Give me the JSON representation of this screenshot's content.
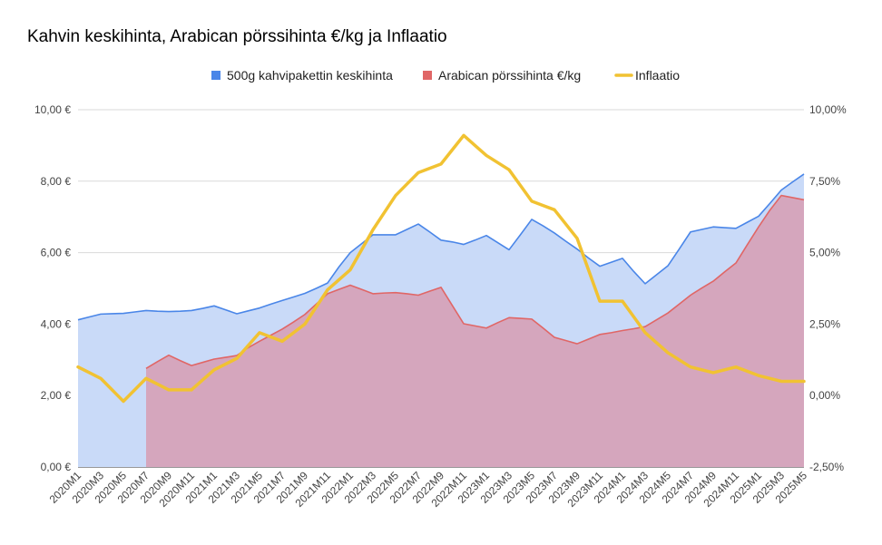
{
  "chart_data": {
    "type": "area",
    "title": "Kahvin keskihinta, Arabican pörssihinta €/kg ja Inflaatio",
    "x": [
      "2020M1",
      "2020M2",
      "2020M3",
      "2020M4",
      "2020M5",
      "2020M6",
      "2020M7",
      "2020M8",
      "2020M9",
      "2020M10",
      "2020M11",
      "2020M12",
      "2021M1",
      "2021M2",
      "2021M3",
      "2021M4",
      "2021M5",
      "2021M6",
      "2021M7",
      "2021M8",
      "2021M9",
      "2021M10",
      "2021M11",
      "2021M12",
      "2022M1",
      "2022M2",
      "2022M3",
      "2022M4",
      "2022M5",
      "2022M6",
      "2022M7",
      "2022M8",
      "2022M9",
      "2022M10",
      "2022M11",
      "2022M12",
      "2023M1",
      "2023M2",
      "2023M3",
      "2023M4",
      "2023M5",
      "2023M6",
      "2023M7",
      "2023M8",
      "2023M9",
      "2023M10",
      "2023M11",
      "2023M12",
      "2024M1",
      "2024M2",
      "2024M3",
      "2024M4",
      "2024M5",
      "2024M6",
      "2024M7",
      "2024M8",
      "2024M9",
      "2024M10",
      "2024M11",
      "2024M12",
      "2025M1",
      "2025M2",
      "2025M3",
      "2025M4",
      "2025M5"
    ],
    "x_tick_labels": [
      "2020M1",
      "2020M3",
      "2020M5",
      "2020M7",
      "2020M9",
      "2020M11",
      "2021M1",
      "2021M3",
      "2021M5",
      "2021M7",
      "2021M9",
      "2021M11",
      "2022M1",
      "2022M3",
      "2022M5",
      "2022M7",
      "2022M9",
      "2022M11",
      "2023M1",
      "2023M3",
      "2023M5",
      "2023M7",
      "2023M9",
      "2023M11",
      "2024M1",
      "2024M3",
      "2024M5",
      "2024M7",
      "2024M9",
      "2024M11",
      "2025M1",
      "2025M3",
      "2025M5"
    ],
    "series": [
      {
        "name": "500g kahvipakettin keskihinta",
        "axis": "left",
        "kind": "area",
        "color": "#4a86e8",
        "fill": "#c9daf8",
        "values": [
          4.12,
          4.2,
          4.28,
          4.29,
          4.3,
          4.34,
          4.38,
          4.36,
          4.35,
          4.36,
          4.38,
          4.44,
          4.51,
          4.4,
          4.29,
          4.37,
          4.45,
          4.56,
          4.66,
          4.76,
          4.86,
          5.0,
          5.15,
          5.6,
          6.0,
          6.25,
          6.5,
          6.5,
          6.5,
          6.65,
          6.8,
          6.58,
          6.35,
          6.3,
          6.23,
          6.35,
          6.48,
          6.28,
          6.08,
          6.5,
          6.93,
          6.75,
          6.55,
          6.32,
          6.1,
          5.85,
          5.62,
          5.73,
          5.84,
          5.47,
          5.13,
          5.38,
          5.63,
          6.1,
          6.58,
          6.65,
          6.72,
          6.7,
          6.68,
          6.85,
          7.02,
          7.38,
          7.75,
          7.98,
          8.2
        ]
      },
      {
        "name": "Arabican pörssihinta €/kg",
        "axis": "left",
        "kind": "area",
        "color": "#e06666",
        "fill": "#d5a6bd",
        "values": [
          null,
          null,
          null,
          null,
          null,
          null,
          2.76,
          2.95,
          3.13,
          2.98,
          2.84,
          2.93,
          3.02,
          3.07,
          3.12,
          3.34,
          3.52,
          3.69,
          3.86,
          4.06,
          4.27,
          4.56,
          4.85,
          4.97,
          5.09,
          4.97,
          4.85,
          4.87,
          4.88,
          4.85,
          4.81,
          4.92,
          5.03,
          4.52,
          4.01,
          3.95,
          3.89,
          4.04,
          4.18,
          4.16,
          4.14,
          3.89,
          3.63,
          3.54,
          3.45,
          3.58,
          3.71,
          3.76,
          3.82,
          3.87,
          3.93,
          4.12,
          4.31,
          4.56,
          4.81,
          5.01,
          5.2,
          5.46,
          5.71,
          6.22,
          6.72,
          7.19,
          7.6,
          7.54,
          7.48
        ]
      },
      {
        "name": "Inflaatio",
        "axis": "right",
        "kind": "line",
        "color": "#f1c232",
        "values": [
          1.0,
          0.8,
          0.6,
          0.2,
          -0.2,
          0.2,
          0.6,
          0.4,
          0.2,
          0.2,
          0.2,
          0.55,
          0.9,
          1.1,
          1.3,
          1.75,
          2.2,
          2.05,
          1.9,
          2.2,
          2.5,
          3.1,
          3.7,
          4.05,
          4.4,
          5.1,
          5.8,
          6.4,
          7.0,
          7.4,
          7.8,
          7.95,
          8.1,
          8.6,
          9.1,
          8.75,
          8.4,
          8.15,
          7.9,
          7.35,
          6.8,
          6.65,
          6.5,
          6.0,
          5.5,
          4.4,
          3.3,
          3.3,
          3.3,
          2.75,
          2.2,
          1.85,
          1.5,
          1.25,
          1.0,
          0.9,
          0.8,
          0.9,
          1.0,
          0.85,
          0.7,
          0.6,
          0.5,
          0.5,
          0.5
        ]
      }
    ],
    "y_left": {
      "min": 0,
      "max": 10,
      "ticks": [
        "0,00 €",
        "2,00 €",
        "4,00 €",
        "6,00 €",
        "8,00 €",
        "10,00 €"
      ]
    },
    "y_right": {
      "min": -2.5,
      "max": 10,
      "ticks": [
        "-2,50%",
        "0,00%",
        "2,50%",
        "5,00%",
        "7,50%",
        "10,00%"
      ]
    },
    "grid": true,
    "legend_position": "top"
  }
}
